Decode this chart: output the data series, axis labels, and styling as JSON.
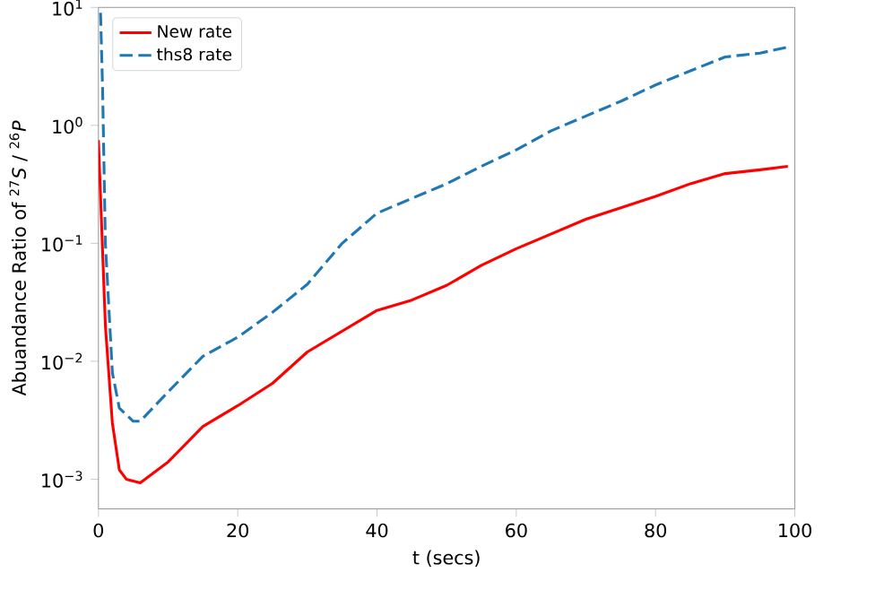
{
  "chart_data": {
    "type": "line",
    "xlabel": "t (secs)",
    "ylabel": "Abuandance Ratio of $^{27}$*S* / $^{26}$*P*",
    "log": "y",
    "legend": "top left",
    "xlim": [
      0,
      100
    ],
    "xticks": [
      0,
      20,
      40,
      60,
      80,
      100
    ],
    "ylim": [
      0.00056,
      10
    ],
    "yticks": [
      {
        "value": 0.001,
        "label": "10$^{−3}$"
      },
      {
        "value": 0.01,
        "label": "10$^{−2}$"
      },
      {
        "value": 0.1,
        "label": "10$^{−1}$"
      },
      {
        "value": 1,
        "label": "10$^{0}$"
      },
      {
        "value": 10,
        "label": "10$^{1}$"
      }
    ],
    "series": [
      {
        "name": "New rate",
        "color": "#ff0000",
        "line_style": "solid",
        "x": [
          0,
          1,
          2,
          3,
          4,
          6,
          10,
          15,
          20,
          25,
          30,
          35,
          40,
          45,
          50,
          55,
          60,
          65,
          70,
          75,
          80,
          85,
          90,
          95,
          99
        ],
        "values": [
          0.75,
          0.02,
          0.003,
          0.0012,
          0.001,
          0.00093,
          0.0014,
          0.0028,
          0.0042,
          0.0065,
          0.012,
          0.018,
          0.027,
          0.033,
          0.044,
          0.065,
          0.09,
          0.12,
          0.16,
          0.2,
          0.25,
          0.32,
          0.39,
          0.42,
          0.45
        ]
      },
      {
        "name": "ths8 rate",
        "color": "#1f77b4",
        "line_style": "dashed",
        "x": [
          0.3,
          0.6,
          1,
          2,
          3,
          5,
          6,
          10,
          15,
          20,
          25,
          30,
          35,
          40,
          45,
          50,
          55,
          60,
          65,
          70,
          75,
          80,
          85,
          90,
          95,
          99
        ],
        "values": [
          9,
          2,
          0.1,
          0.008,
          0.004,
          0.0031,
          0.0031,
          0.0055,
          0.011,
          0.016,
          0.026,
          0.045,
          0.1,
          0.18,
          0.24,
          0.32,
          0.45,
          0.62,
          0.9,
          1.2,
          1.6,
          2.2,
          2.9,
          3.8,
          4.1,
          4.6
        ]
      }
    ]
  }
}
